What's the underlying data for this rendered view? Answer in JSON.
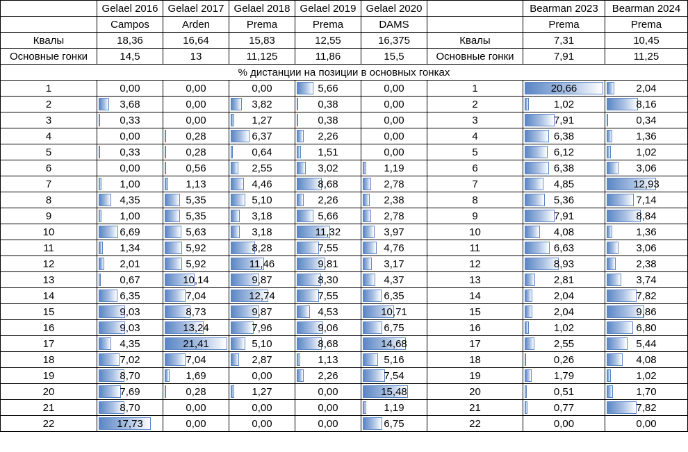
{
  "headers": {
    "drivers": [
      "Gelael 2016",
      "Gelael 2017",
      "Gelael 2018",
      "Gelael 2019",
      "Gelael 2020",
      "",
      "Bearman 2023",
      "Bearman 2024"
    ],
    "teams": [
      "Campos",
      "Arden",
      "Prema",
      "Prema",
      "DAMS",
      "",
      "Prema",
      "Prema"
    ]
  },
  "summary": [
    {
      "label": "Квалы",
      "values": [
        "18,36",
        "16,64",
        "15,83",
        "12,55",
        "16,375"
      ],
      "label2": "Квалы",
      "values2": [
        "7,31",
        "10,45"
      ]
    },
    {
      "label": "Основные гонки",
      "values": [
        "14,5",
        "13",
        "11,125",
        "11,86",
        "15,5"
      ],
      "label2": "Основные гонки",
      "values2": [
        "7,91",
        "11,25"
      ]
    }
  ],
  "section_title": "% дистанции на позиции в основных гонках",
  "positions": [
    {
      "pos": "1",
      "values": [
        "0,00",
        "0,00",
        "0,00",
        "5,66",
        "0,00"
      ],
      "values2": [
        "20,66",
        "2,04"
      ]
    },
    {
      "pos": "2",
      "values": [
        "3,68",
        "0,00",
        "3,82",
        "0,38",
        "0,00"
      ],
      "values2": [
        "1,02",
        "8,16"
      ]
    },
    {
      "pos": "3",
      "values": [
        "0,33",
        "0,00",
        "1,27",
        "0,38",
        "0,00"
      ],
      "values2": [
        "7,91",
        "0,34"
      ]
    },
    {
      "pos": "4",
      "values": [
        "0,00",
        "0,28",
        "6,37",
        "2,26",
        "0,00"
      ],
      "values2": [
        "6,38",
        "1,36"
      ]
    },
    {
      "pos": "5",
      "values": [
        "0,33",
        "0,28",
        "0,64",
        "1,51",
        "0,00"
      ],
      "values2": [
        "6,12",
        "1,02"
      ]
    },
    {
      "pos": "6",
      "values": [
        "0,00",
        "0,56",
        "2,55",
        "3,02",
        "1,19"
      ],
      "values2": [
        "6,38",
        "3,06"
      ]
    },
    {
      "pos": "7",
      "values": [
        "1,00",
        "1,13",
        "4,46",
        "8,68",
        "2,78"
      ],
      "values2": [
        "4,85",
        "12,93"
      ]
    },
    {
      "pos": "8",
      "values": [
        "4,35",
        "5,35",
        "5,10",
        "2,26",
        "2,38"
      ],
      "values2": [
        "5,36",
        "7,14"
      ]
    },
    {
      "pos": "9",
      "values": [
        "1,00",
        "5,35",
        "3,18",
        "5,66",
        "2,78"
      ],
      "values2": [
        "7,91",
        "8,84"
      ]
    },
    {
      "pos": "10",
      "values": [
        "6,69",
        "5,63",
        "3,18",
        "11,32",
        "3,97"
      ],
      "values2": [
        "4,08",
        "1,36"
      ]
    },
    {
      "pos": "11",
      "values": [
        "1,34",
        "5,92",
        "8,28",
        "7,55",
        "4,76"
      ],
      "values2": [
        "6,63",
        "3,06"
      ]
    },
    {
      "pos": "12",
      "values": [
        "2,01",
        "5,92",
        "11,46",
        "9,81",
        "3,17"
      ],
      "values2": [
        "8,93",
        "2,38"
      ]
    },
    {
      "pos": "13",
      "values": [
        "0,67",
        "10,14",
        "9,87",
        "8,30",
        "4,37"
      ],
      "values2": [
        "2,81",
        "3,74"
      ]
    },
    {
      "pos": "14",
      "values": [
        "6,35",
        "7,04",
        "12,74",
        "7,55",
        "6,35"
      ],
      "values2": [
        "2,04",
        "7,82"
      ]
    },
    {
      "pos": "15",
      "values": [
        "9,03",
        "8,73",
        "9,87",
        "4,53",
        "10,71"
      ],
      "values2": [
        "2,04",
        "9,86"
      ]
    },
    {
      "pos": "16",
      "values": [
        "9,03",
        "13,24",
        "7,96",
        "9,06",
        "6,75"
      ],
      "values2": [
        "1,02",
        "6,80"
      ]
    },
    {
      "pos": "17",
      "values": [
        "4,35",
        "21,41",
        "5,10",
        "8,68",
        "14,68"
      ],
      "values2": [
        "2,55",
        "5,44"
      ]
    },
    {
      "pos": "18",
      "values": [
        "7,02",
        "7,04",
        "2,87",
        "1,13",
        "5,16"
      ],
      "values2": [
        "0,26",
        "4,08"
      ]
    },
    {
      "pos": "19",
      "values": [
        "8,70",
        "1,69",
        "0,00",
        "2,26",
        "7,54"
      ],
      "values2": [
        "1,79",
        "1,02"
      ]
    },
    {
      "pos": "20",
      "values": [
        "7,69",
        "0,28",
        "1,27",
        "0,00",
        "15,48"
      ],
      "values2": [
        "0,51",
        "1,70"
      ]
    },
    {
      "pos": "21",
      "values": [
        "8,70",
        "0,00",
        "0,00",
        "0,00",
        "1,19"
      ],
      "values2": [
        "0,77",
        "7,82"
      ]
    },
    {
      "pos": "22",
      "values": [
        "17,73",
        "0,00",
        "0,00",
        "0,00",
        "6,75"
      ],
      "values2": [
        "0,00",
        "0,00"
      ]
    }
  ],
  "databar": {
    "left_max": 21.41,
    "right_max": 20.66,
    "color_start": "#5b86c4",
    "color_mid": "#a9c0e3",
    "color_end": "#ffffff"
  }
}
